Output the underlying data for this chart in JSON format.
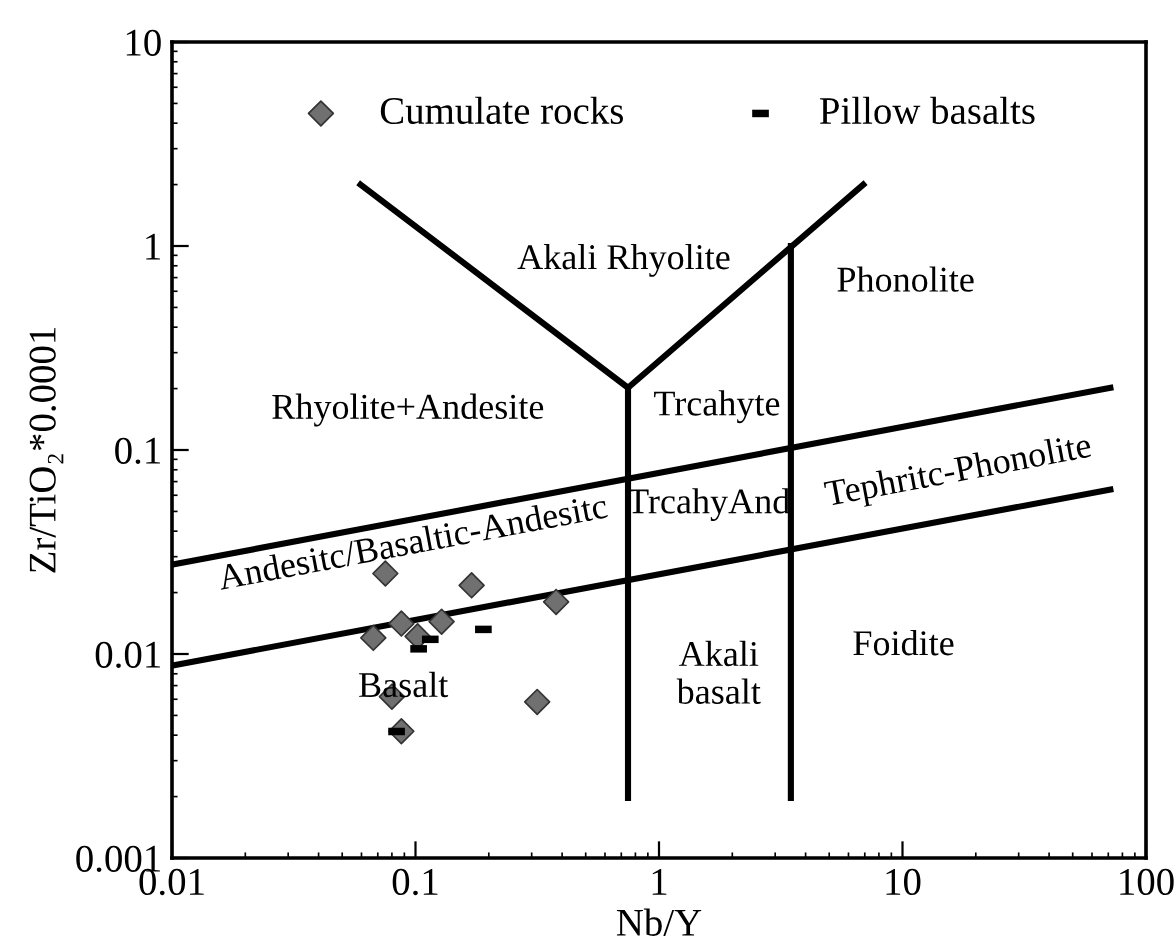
{
  "chart_data": {
    "type": "scatter",
    "xlabel": "Nb/Y",
    "ylabel": "Zr/TiO₂*0.0001",
    "log": "xy",
    "grid": false,
    "legend": "top",
    "xlim": [
      0.01,
      100
    ],
    "ylim": [
      0.001,
      10
    ],
    "xticks": [
      0.01,
      0.1,
      1,
      10,
      100
    ],
    "yticks": [
      0.001,
      0.01,
      0.1,
      1,
      10
    ],
    "series": [
      {
        "name": "Cumulate rocks",
        "color": "#707070",
        "marker": "diamond",
        "x": [
          0.0752,
          0.17,
          0.378,
          0.0875,
          0.128,
          0.0671,
          0.102,
          0.08,
          0.316,
          0.0875
        ],
        "values": [
          0.0248,
          0.0217,
          0.018,
          0.0141,
          0.0144,
          0.012,
          0.0122,
          0.00618,
          0.00582,
          0.00418
        ]
      },
      {
        "name": "Pillow basalts",
        "color": "#000000",
        "x": [
          0.115,
          0.103,
          0.19,
          0.0836
        ],
        "values": [
          0.0118,
          0.0106,
          0.0132,
          0.00417
        ]
      },
      {
        "type": "line",
        "color": "#000000",
        "x": [
          0.0595,
          0.746,
          6.9
        ],
        "values": [
          2.0,
          0.202,
          2.0
        ]
      },
      {
        "type": "line",
        "color": "#000000",
        "x": [
          0.746,
          0.746
        ],
        "values": [
          0.202,
          0.00197
        ]
      },
      {
        "type": "line",
        "color": "#000000",
        "x": [
          3.48,
          3.48
        ],
        "values": [
          1.0,
          0.00197
        ]
      },
      {
        "type": "line",
        "color": "#000000",
        "x": [
          0.01,
          71.4
        ],
        "values": [
          0.0274,
          0.202
        ]
      },
      {
        "type": "line",
        "color": "#000000",
        "x": [
          0.01,
          71.4
        ],
        "values": [
          0.00877,
          0.064
        ]
      }
    ],
    "annotations": [
      "Akali Rhyolite",
      "Phonolite",
      "Rhyolite+Andesite",
      "Trcahyte",
      "Andesitc/Basaltic-Andesitc",
      "TrcahyAnd",
      "Tephritc-Phonolite",
      "Basalt",
      "Akali\nbasalt",
      "Foidite"
    ]
  }
}
